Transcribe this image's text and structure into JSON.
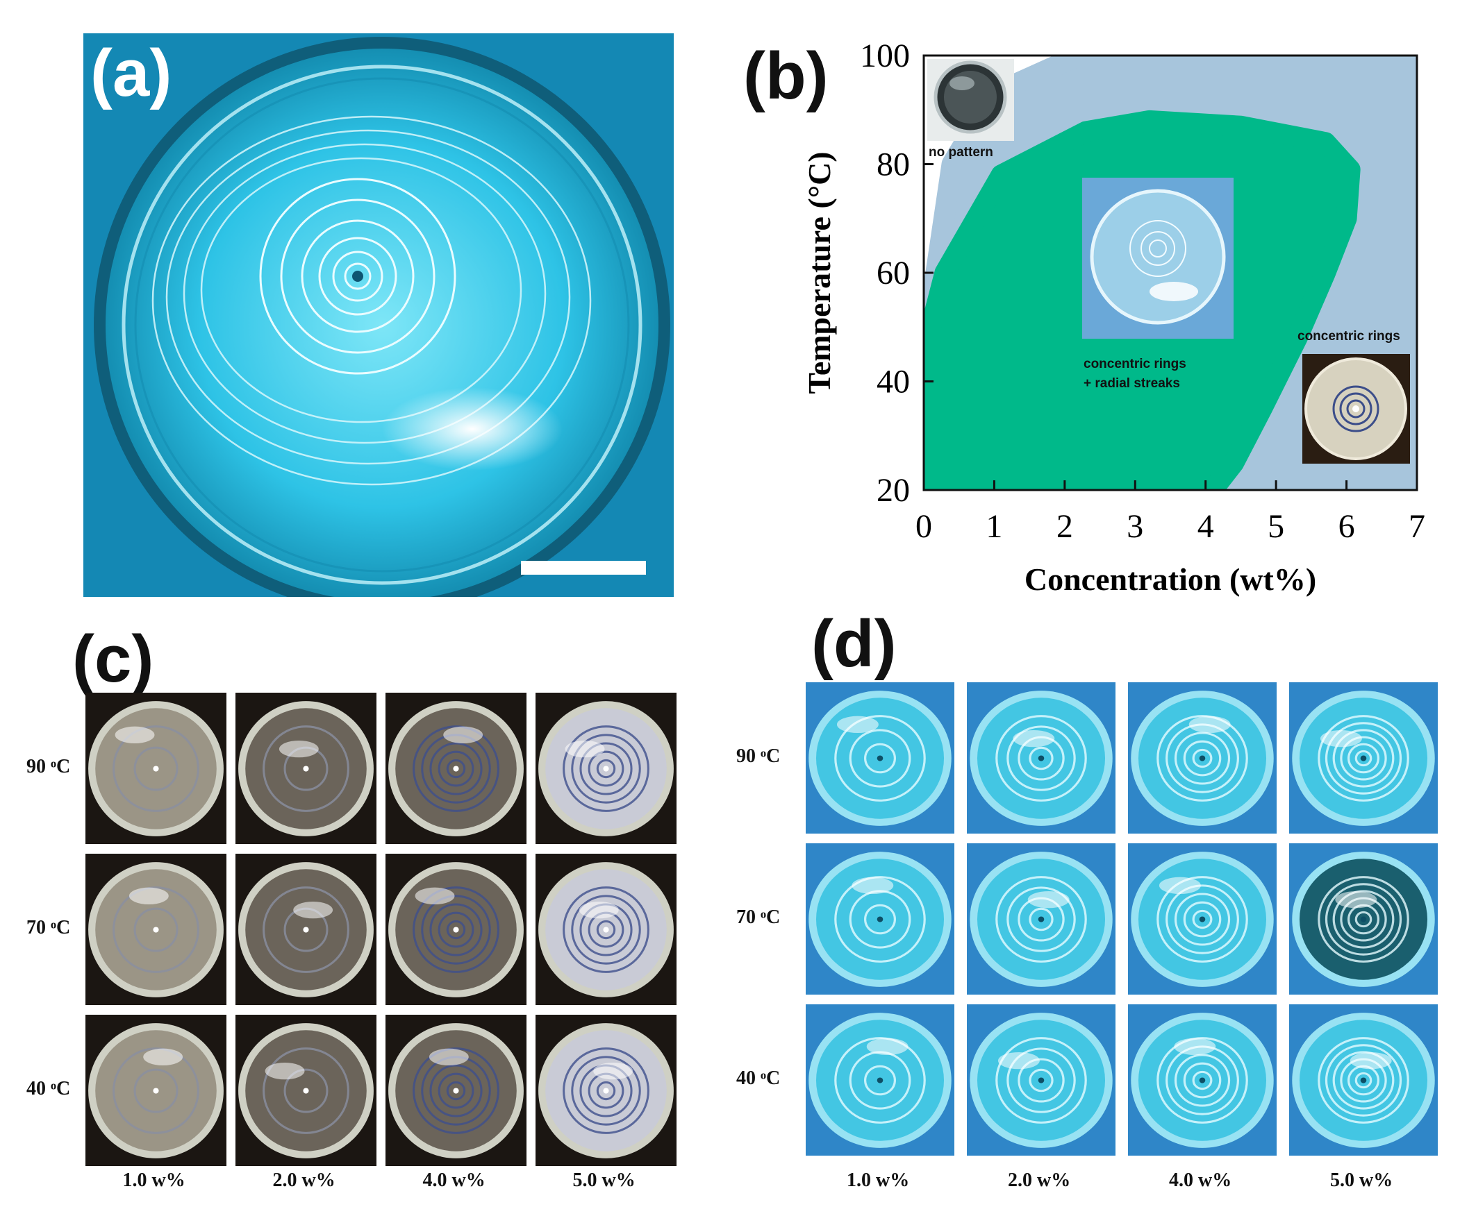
{
  "panels": {
    "a": {
      "label": "(a)"
    },
    "b": {
      "label": "(b)"
    },
    "c": {
      "label": "(c)"
    },
    "d": {
      "label": "(d)"
    }
  },
  "chart_data": {
    "type": "area",
    "xlabel": "Concentration (wt%)",
    "ylabel": "Temperature (°C)",
    "xlim": [
      0,
      7
    ],
    "ylim": [
      20,
      100
    ],
    "xticks": [
      "0",
      "1",
      "2",
      "3",
      "4",
      "5",
      "6",
      "7"
    ],
    "yticks": [
      "20",
      "40",
      "60",
      "80",
      "100"
    ],
    "regions": [
      {
        "name": "concentric rings",
        "color": "#a7c5dc",
        "boundary": [
          [
            0,
            20
          ],
          [
            0,
            45
          ],
          [
            0.4,
            80
          ],
          [
            1.0,
            93
          ],
          [
            2.2,
            100
          ],
          [
            7,
            100
          ],
          [
            7,
            20
          ]
        ]
      },
      {
        "name": "concentric  rings\n+ radial streaks",
        "color": "#00b98a",
        "boundary": [
          [
            0,
            20
          ],
          [
            0,
            45
          ],
          [
            0.3,
            60
          ],
          [
            1.1,
            78
          ],
          [
            2.3,
            86
          ],
          [
            3.2,
            88
          ],
          [
            4.5,
            87
          ],
          [
            5.7,
            84
          ],
          [
            6.05,
            79
          ],
          [
            6.0,
            70
          ],
          [
            5.7,
            60
          ],
          [
            5.3,
            48
          ],
          [
            4.8,
            35
          ],
          [
            4.4,
            25
          ],
          [
            4.1,
            20
          ]
        ]
      }
    ],
    "inset_labels": [
      "no pattern",
      "concentric  rings",
      "+ radial streaks",
      "concentric rings"
    ],
    "grid": false
  },
  "grid_c": {
    "rows": [
      "90 ᵒC",
      "70 ᵒC",
      "40 ᵒC"
    ],
    "cols": [
      "1.0 w%",
      "2.0 w%",
      "4.0 w%",
      "5.0 w%"
    ]
  },
  "grid_d": {
    "rows": [
      "90 ᵒC",
      "70 ᵒC",
      "40 ᵒC"
    ],
    "cols": [
      "1.0 w%",
      "2.0 w%",
      "4.0 w%",
      "5.0 w%"
    ]
  },
  "colors": {
    "cyan_background": "#1aa0c8",
    "light_blue_region": "#a7c5dc",
    "green_region": "#00b98a"
  }
}
